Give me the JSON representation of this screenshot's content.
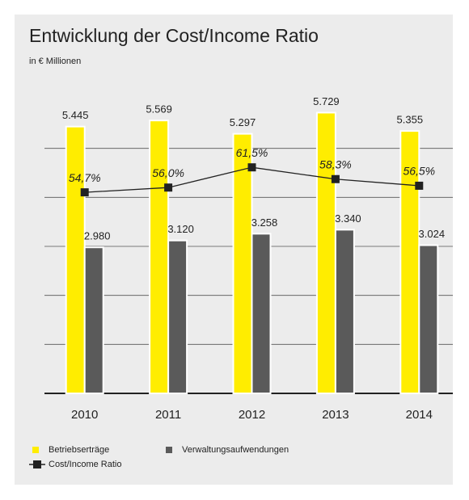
{
  "chart_data": {
    "type": "bar",
    "title": "Entwicklung der Cost/Income Ratio",
    "subtitle": "in € Millionen",
    "categories": [
      "2010",
      "2011",
      "2012",
      "2013",
      "2014"
    ],
    "series": [
      {
        "name": "Betriebserträge",
        "color": "#ffed00",
        "type": "bar",
        "values": [
          5445,
          5569,
          5297,
          5729,
          5355
        ],
        "value_labels": [
          "5.445",
          "5.569",
          "5.297",
          "5.729",
          "5.355"
        ]
      },
      {
        "name": "Verwaltungsaufwendungen",
        "color": "#5a5a5a",
        "type": "bar",
        "values": [
          2980,
          3120,
          3258,
          3340,
          3024
        ],
        "value_labels": [
          "2.980",
          "3.120",
          "3.258",
          "3.340",
          "3.024"
        ]
      },
      {
        "name": "Cost/Income Ratio",
        "color": "#222222",
        "type": "line",
        "axis": "y2",
        "values": [
          54.7,
          56.0,
          61.5,
          58.3,
          56.5
        ],
        "value_labels": [
          "54,7%",
          "56,0%",
          "61,5%",
          "58,3%",
          "56,5%"
        ]
      }
    ],
    "ylim": [
      0,
      6000
    ],
    "yticks": [
      0,
      1000,
      2000,
      3000,
      4000,
      5000
    ],
    "y2lim": [
      0,
      80
    ],
    "grid": true,
    "legend": "bottom-left"
  }
}
